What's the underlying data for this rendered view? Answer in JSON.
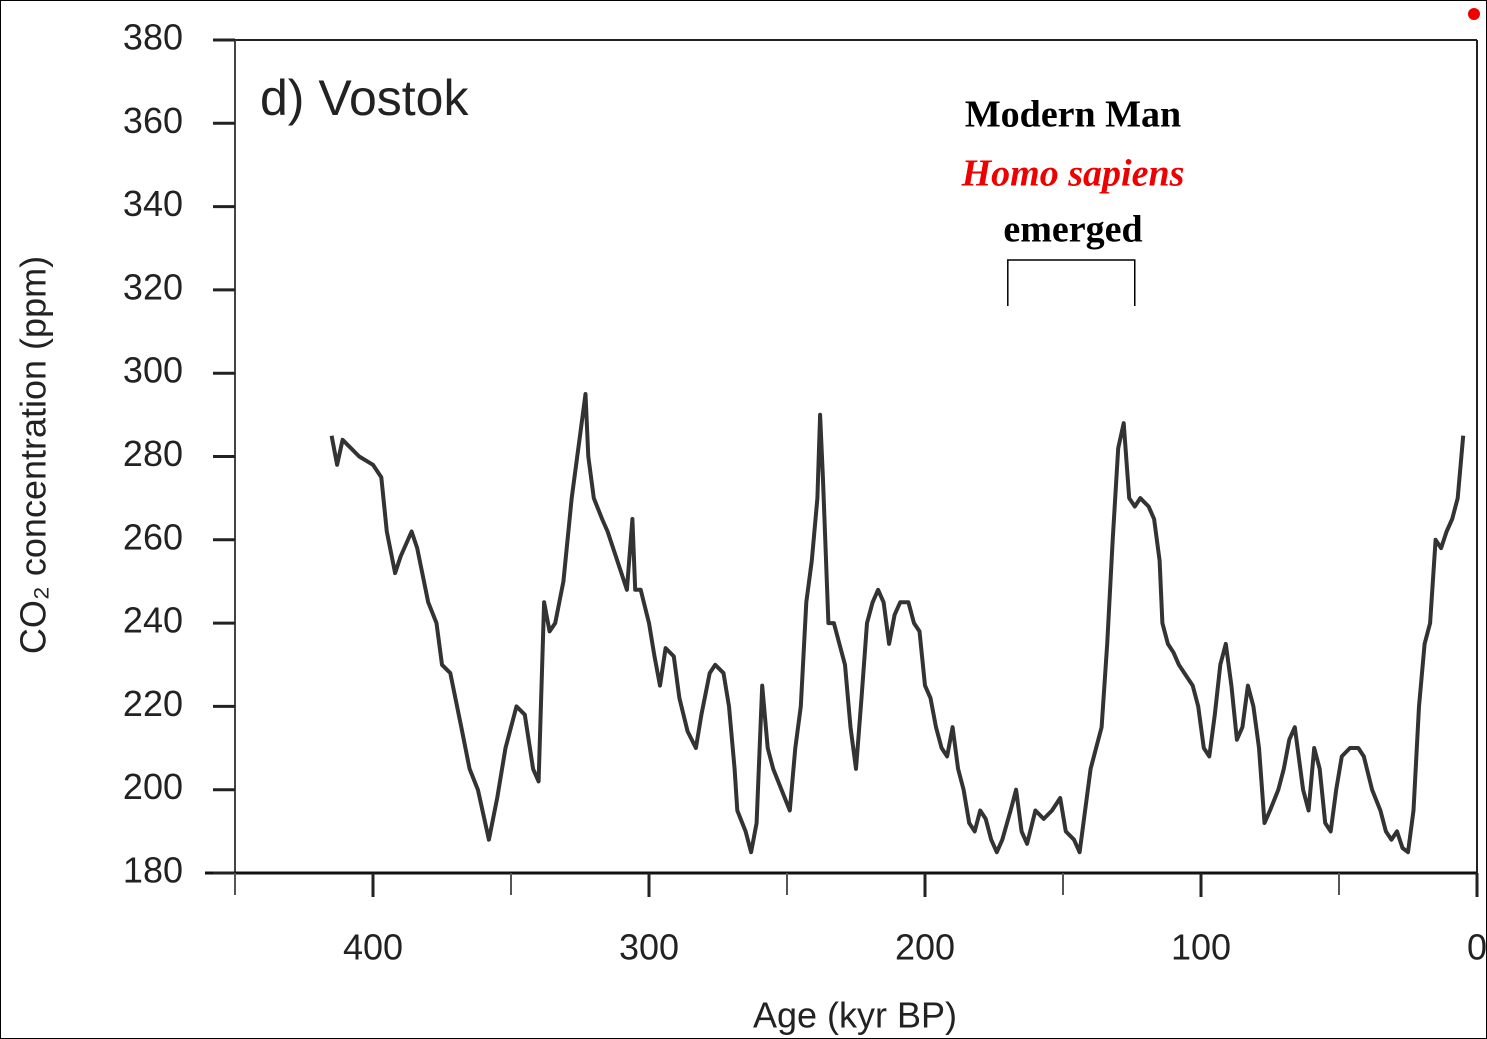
{
  "chart_data": {
    "type": "line",
    "title": "d) Vostok",
    "xlabel": "Age (kyr BP)",
    "ylabel": "CO₂ concentration (ppm)",
    "annotations": [
      "Modern Man",
      "Homo sapiens",
      "emerged"
    ],
    "annotation_range": [
      170,
      124
    ],
    "xlim": [
      450,
      0
    ],
    "xticks": [
      400,
      300,
      200,
      100,
      0
    ],
    "xticks_minor": [
      450,
      350,
      250,
      150,
      50
    ],
    "ylim": [
      180,
      380
    ],
    "yticks": [
      180,
      200,
      220,
      240,
      260,
      280,
      300,
      320,
      340,
      360,
      380
    ],
    "series": [
      {
        "name": "Vostok CO2",
        "color": "#333333",
        "x": [
          415,
          413,
          411,
          405,
          400,
          397,
          395,
          392,
          390,
          386,
          384,
          380,
          377,
          375,
          372,
          368,
          365,
          362,
          358,
          355,
          352,
          348,
          345,
          342,
          340,
          338,
          336,
          334,
          331,
          328,
          325,
          323,
          322,
          320,
          317,
          315,
          312,
          310,
          308,
          306,
          305,
          303,
          300,
          298,
          296,
          294,
          291,
          289,
          286,
          283,
          281,
          278,
          276,
          273,
          271,
          269,
          268,
          265,
          263,
          261,
          259,
          257,
          255,
          252,
          249,
          247,
          245,
          243,
          241,
          239,
          238,
          237,
          235,
          233,
          231,
          229,
          227,
          225,
          223,
          221,
          219,
          217,
          215,
          213,
          211,
          209,
          206,
          204,
          202,
          200,
          198,
          196,
          194,
          192,
          190,
          188,
          186,
          184,
          182,
          180,
          178,
          176,
          174,
          172,
          169,
          167,
          165,
          163,
          160,
          157,
          154,
          151,
          149,
          146,
          144,
          142,
          140,
          138,
          136,
          134,
          132,
          130,
          128,
          126,
          124,
          122,
          119,
          117,
          115,
          114,
          112,
          110,
          108,
          106,
          103,
          101,
          99,
          97,
          95,
          93,
          91,
          89,
          87,
          85,
          83,
          81,
          79,
          77,
          75,
          72,
          70,
          68,
          66,
          63,
          61,
          59,
          57,
          55,
          53,
          51,
          49,
          46,
          43,
          41,
          38,
          35,
          33,
          31,
          29,
          27,
          25,
          23,
          21,
          19,
          17,
          15,
          13,
          11,
          9,
          7,
          5
        ],
        "values": [
          285,
          278,
          284,
          280,
          278,
          275,
          262,
          252,
          256,
          262,
          258,
          245,
          240,
          230,
          228,
          215,
          205,
          200,
          188,
          198,
          210,
          220,
          218,
          205,
          202,
          245,
          238,
          240,
          250,
          270,
          285,
          295,
          280,
          270,
          265,
          262,
          256,
          252,
          248,
          265,
          248,
          248,
          240,
          232,
          225,
          234,
          232,
          222,
          214,
          210,
          218,
          228,
          230,
          228,
          220,
          205,
          195,
          190,
          185,
          192,
          225,
          210,
          205,
          200,
          195,
          210,
          220,
          245,
          255,
          270,
          290,
          275,
          240,
          240,
          235,
          230,
          215,
          205,
          222,
          240,
          245,
          248,
          245,
          235,
          242,
          245,
          245,
          240,
          238,
          225,
          222,
          215,
          210,
          208,
          215,
          205,
          200,
          192,
          190,
          195,
          193,
          188,
          185,
          188,
          195,
          200,
          190,
          187,
          195,
          193,
          195,
          198,
          190,
          188,
          185,
          195,
          205,
          210,
          215,
          235,
          260,
          282,
          288,
          270,
          268,
          270,
          268,
          265,
          255,
          240,
          235,
          233,
          230,
          228,
          225,
          220,
          210,
          208,
          218,
          230,
          235,
          225,
          212,
          215,
          225,
          220,
          210,
          192,
          195,
          200,
          205,
          212,
          215,
          200,
          195,
          210,
          205,
          192,
          190,
          200,
          208,
          210,
          210,
          208,
          200,
          195,
          190,
          188,
          190,
          186,
          185,
          195,
          220,
          235,
          240,
          260,
          258,
          262,
          265,
          270,
          285
        ]
      }
    ]
  }
}
